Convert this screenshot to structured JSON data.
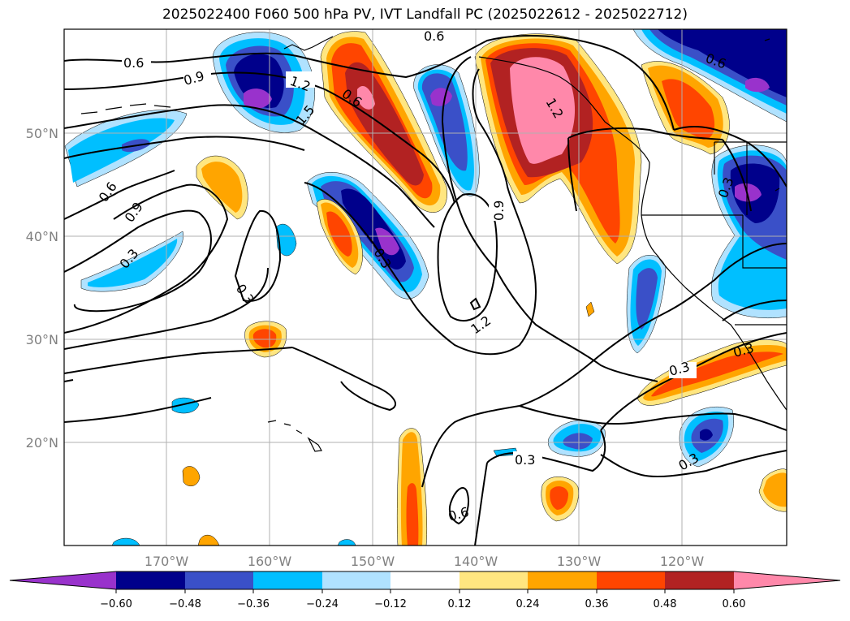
{
  "title": "2025022400 F060 500 hPa PV, IVT Landfall PC (2025022612 - 2025022712)",
  "lat_labels": [
    "50°N",
    "40°N",
    "30°N",
    "20°N"
  ],
  "lon_labels": [
    "170°W",
    "160°W",
    "150°W",
    "140°W",
    "130°W",
    "120°W"
  ],
  "contour_labels": [
    "0.6",
    "0.6",
    "0.6",
    "0.9",
    "1.2",
    "1.5",
    "0.6",
    "0.9",
    "1.2",
    "0.6",
    "0.9",
    "0.3",
    "0.3",
    "1.2",
    "0.3",
    "0.3",
    "0.3",
    "0.6",
    "0.3",
    "0.3",
    "0.3"
  ],
  "colorbar": {
    "ticks": [
      "−0.60",
      "−0.48",
      "−0.36",
      "−0.24",
      "−0.12",
      "0.12",
      "0.24",
      "0.36",
      "0.48",
      "0.60"
    ],
    "colors": [
      "#9932cc",
      "#00008b",
      "#3a50c8",
      "#00bfff",
      "#b0e2ff",
      "#ffffff",
      "#ffe680",
      "#ffa500",
      "#ff4500",
      "#b22222",
      "#ff88aa"
    ]
  }
}
